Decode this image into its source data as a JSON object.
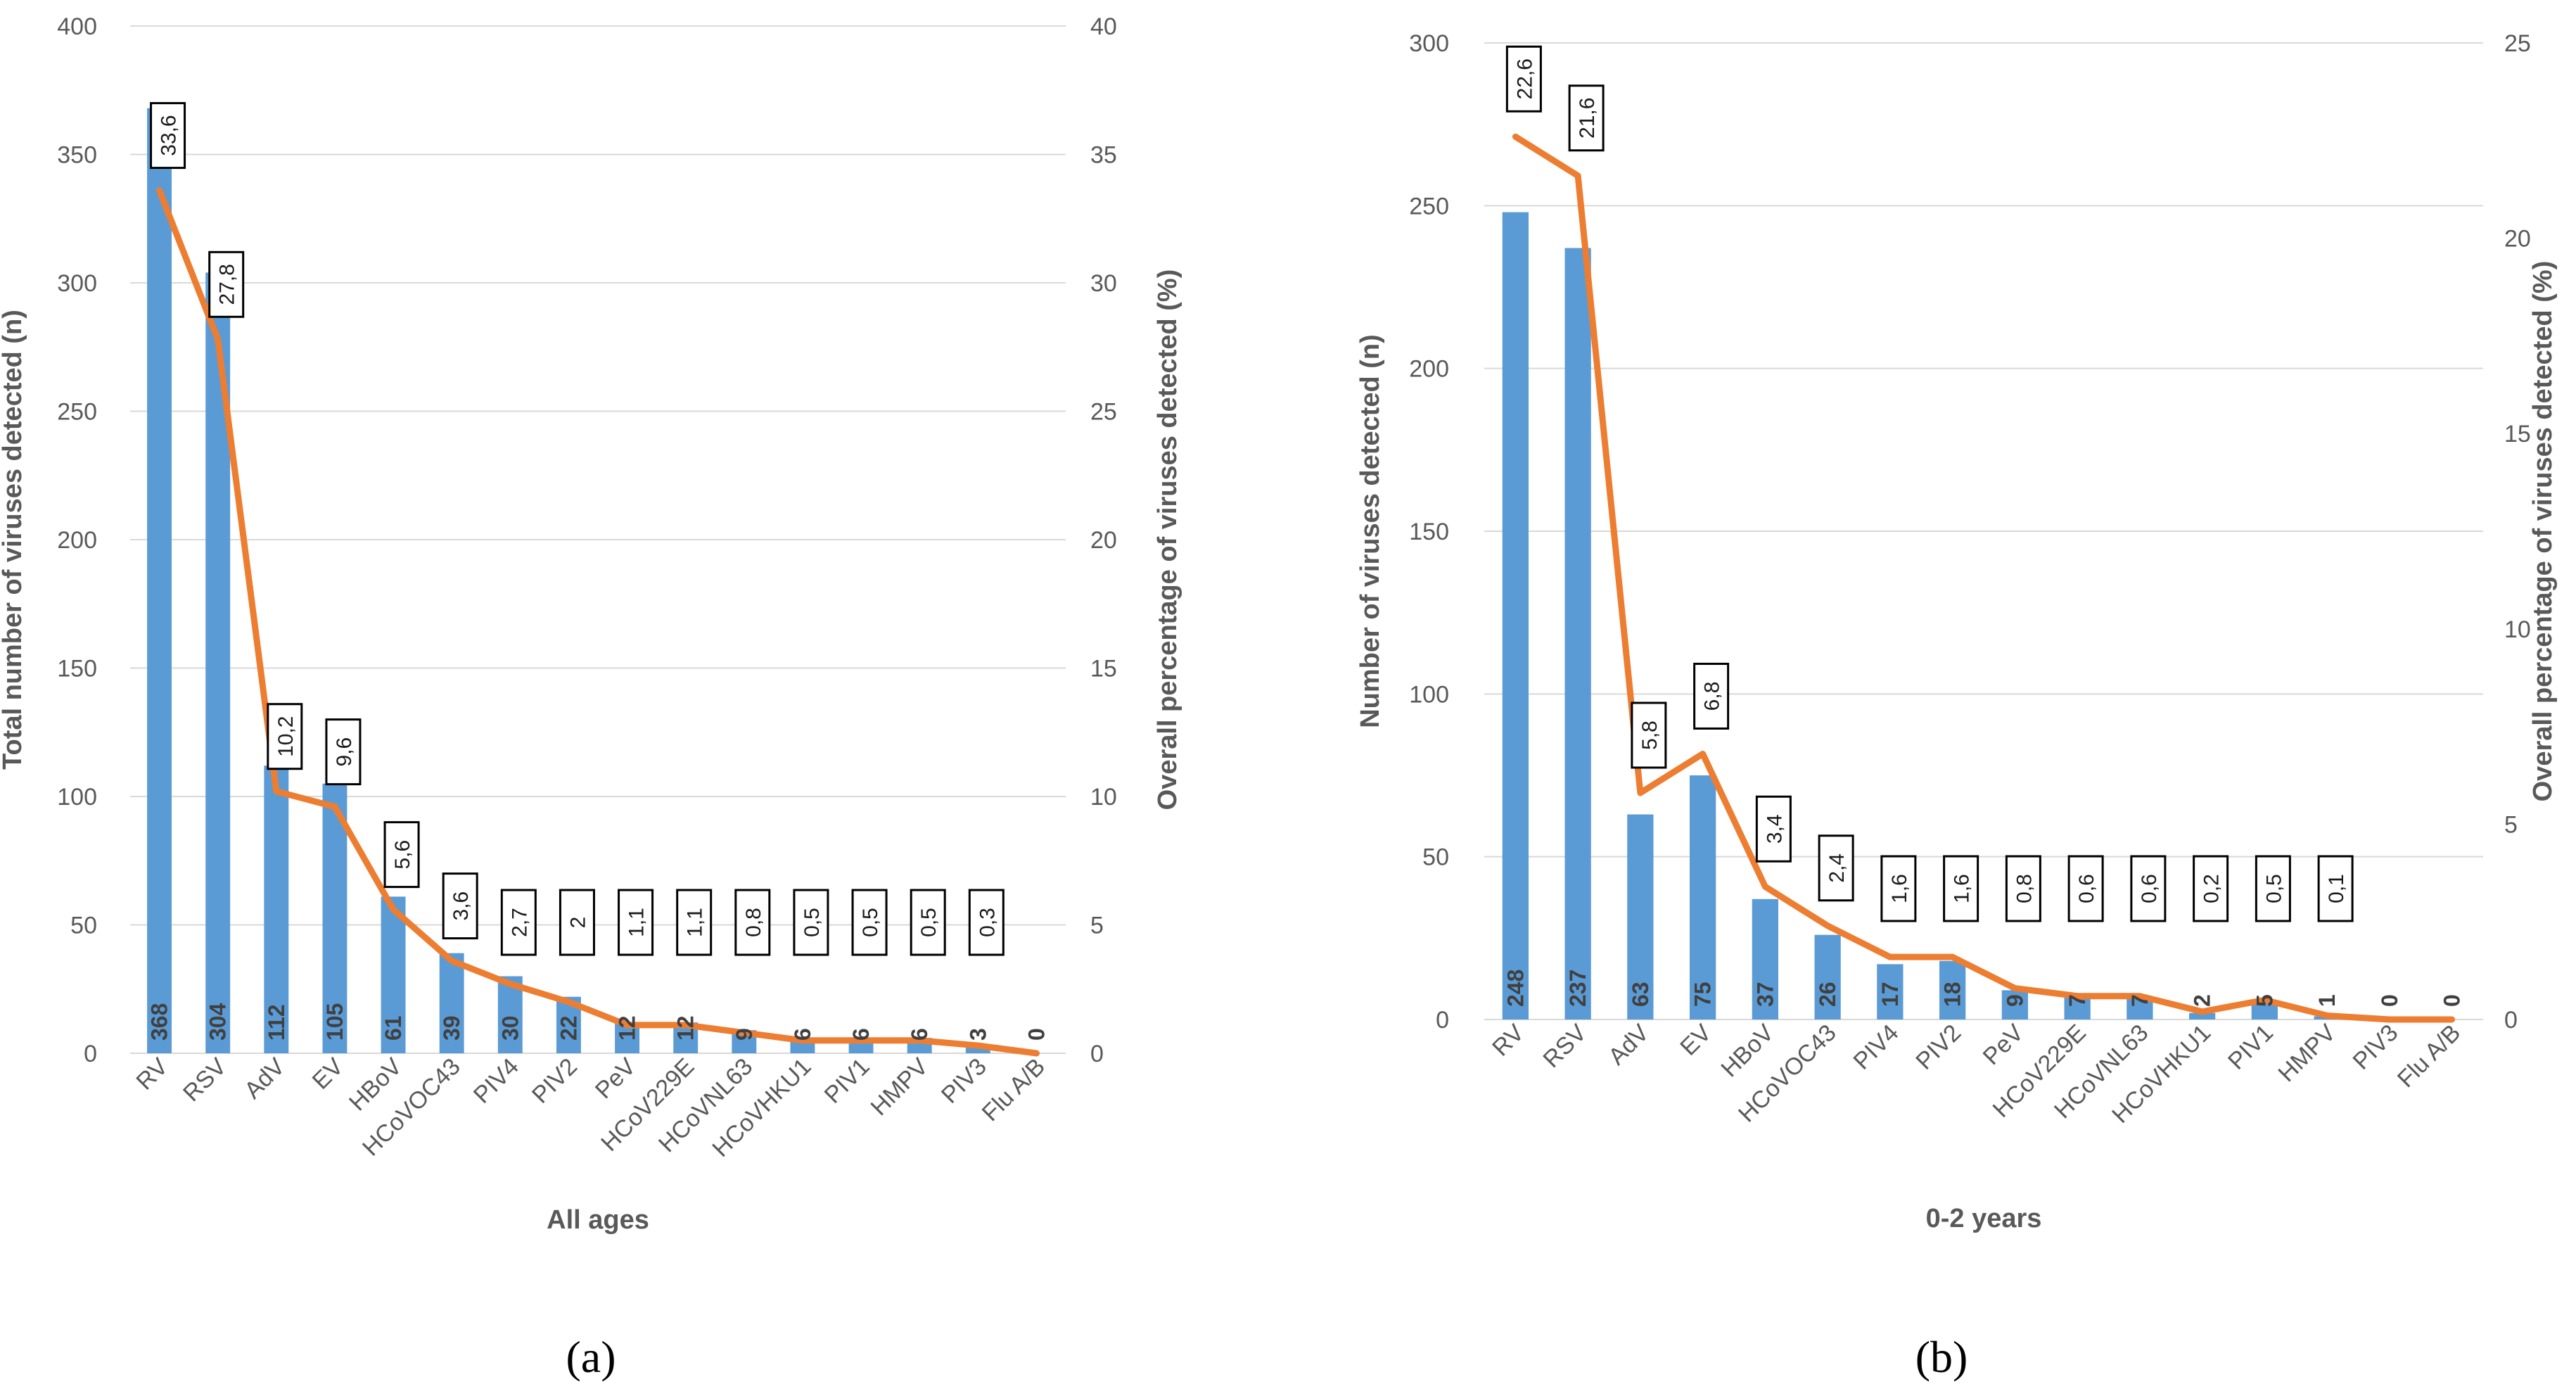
{
  "chart_data": [
    {
      "type": "bar",
      "panel": "a",
      "title": "All ages",
      "xlabel": "All ages",
      "ylabel": "Total number of viruses detected (n)",
      "y2label": "Overall percentage of viruses detected (%)",
      "ylim": [
        0,
        400
      ],
      "y2lim": [
        0,
        40
      ],
      "yticks": [
        0,
        50,
        100,
        150,
        200,
        250,
        300,
        350,
        400
      ],
      "y2ticks": [
        0,
        5,
        10,
        15,
        20,
        25,
        30,
        35,
        40
      ],
      "grid": true,
      "categories": [
        "RV",
        "RSV",
        "AdV",
        "EV",
        "HBoV",
        "HCoVOC43",
        "PIV4",
        "PIV2",
        "PeV",
        "HCoV229E",
        "HCoVNL63",
        "HCoVHKU1",
        "PIV1",
        "HMPV",
        "PIV3",
        "Flu A/B"
      ],
      "series": [
        {
          "type": "bar",
          "axis": "left",
          "values": [
            368,
            304,
            112,
            105,
            61,
            39,
            30,
            22,
            12,
            12,
            9,
            6,
            6,
            6,
            3,
            0
          ]
        },
        {
          "type": "line",
          "axis": "right",
          "values": [
            33.6,
            27.8,
            10.2,
            9.6,
            5.6,
            3.6,
            2.7,
            2,
            1.1,
            1.1,
            0.8,
            0.5,
            0.5,
            0.5,
            0.3,
            0
          ]
        }
      ],
      "bar_labels": [
        "368",
        "304",
        "112",
        "105",
        "61",
        "39",
        "30",
        "22",
        "12",
        "12",
        "9",
        "6",
        "6",
        "6",
        "3",
        "0"
      ],
      "line_labels": [
        "33,6",
        "27,8",
        "10,2",
        "9,6",
        "5,6",
        "3,6",
        "2,7",
        "2",
        "1,1",
        "1,1",
        "0,8",
        "0,5",
        "0,5",
        "0,5",
        "0,3",
        ""
      ],
      "colors": {
        "bar": "#5b9bd5",
        "line": "#ed7d31"
      }
    },
    {
      "type": "bar",
      "panel": "b",
      "title": "0-2 years",
      "xlabel": "0-2 years",
      "ylabel": "Number of viruses detected (n)",
      "y2label": "Overall percentage of viruses detected (%)",
      "ylim": [
        0,
        300
      ],
      "y2lim": [
        0,
        25
      ],
      "yticks": [
        0,
        50,
        100,
        150,
        200,
        250,
        300
      ],
      "y2ticks": [
        0,
        5,
        10,
        15,
        20,
        25
      ],
      "grid": true,
      "categories": [
        "RV",
        "RSV",
        "AdV",
        "EV",
        "HBoV",
        "HCoVOC43",
        "PIV4",
        "PIV2",
        "PeV",
        "HCoV229E",
        "HCoVNL63",
        "HCoVHKU1",
        "PIV1",
        "HMPV",
        "PIV3",
        "Flu A/B"
      ],
      "series": [
        {
          "type": "bar",
          "axis": "left",
          "values": [
            248,
            237,
            63,
            75,
            37,
            26,
            17,
            18,
            9,
            7,
            7,
            2,
            5,
            1,
            0,
            0
          ]
        },
        {
          "type": "line",
          "axis": "right",
          "values": [
            22.6,
            21.6,
            5.8,
            6.8,
            3.4,
            2.4,
            1.6,
            1.6,
            0.8,
            0.6,
            0.6,
            0.2,
            0.5,
            0.1,
            0,
            0
          ]
        }
      ],
      "bar_labels": [
        "248",
        "237",
        "63",
        "75",
        "37",
        "26",
        "17",
        "18",
        "9",
        "7",
        "7",
        "2",
        "5",
        "1",
        "0",
        "0"
      ],
      "line_labels": [
        "22,6",
        "21,6",
        "5,8",
        "6,8",
        "3,4",
        "2,4",
        "1,6",
        "1,6",
        "0,8",
        "0,6",
        "0,6",
        "0,2",
        "0,5",
        "0,1",
        "",
        ""
      ],
      "colors": {
        "bar": "#5b9bd5",
        "line": "#ed7d31"
      }
    }
  ],
  "panels": {
    "a": "(a)",
    "b": "(b)"
  }
}
